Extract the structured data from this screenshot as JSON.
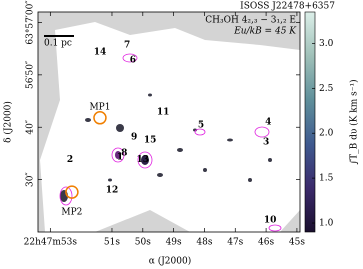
{
  "chart_data": {
    "type": "map",
    "title": "ISOSS J22478+6357",
    "line_label": "CH₃OH 4₂,₃ − 3₁,₂ E",
    "energy_label": "Eu/kB = 45 K",
    "scale_bar": "0.1 pc",
    "x_label": "α (J2000)",
    "y_label": "δ (J2000)",
    "colorbar_label": "∫T_B dυ (K km s⁻¹)",
    "xlim": [
      53.4,
      44.9
    ],
    "xticks": [
      {
        "value": 53,
        "label": "22h47m53s"
      },
      {
        "value": 51,
        "label": "51s"
      },
      {
        "value": 50,
        "label": "50s"
      },
      {
        "value": 49,
        "label": "49s"
      },
      {
        "value": 48,
        "label": "48s"
      },
      {
        "value": 47,
        "label": "47s"
      },
      {
        "value": 46,
        "label": "46s"
      },
      {
        "value": 45,
        "label": "45s"
      }
    ],
    "ylim": [
      20,
      62
    ],
    "yticks": [
      {
        "value": 60,
        "label": "63°57′00″"
      },
      {
        "value": 50,
        "label": "56′50″"
      },
      {
        "value": 40,
        "label": "40″"
      },
      {
        "value": 30,
        "label": "30″"
      }
    ],
    "clim": [
      0.9,
      3.35
    ],
    "cticks": [
      {
        "value": 1,
        "label": "1.0"
      },
      1.5,
      {
        "value": 2,
        "label": "2.0"
      },
      2.5,
      {
        "value": 3,
        "label": "3.0"
      }
    ],
    "colormap": [
      "#1a0f2e",
      "#3b2a6b",
      "#3f5a8f",
      "#5f8f9a",
      "#9fc0b8",
      "#dcefe9"
    ],
    "cores": {
      "color": "#e020e0",
      "labels": [
        "14",
        "7",
        "6",
        "11",
        "4",
        "3",
        "5",
        "9",
        "15",
        "1",
        "8",
        "13",
        "12",
        "2",
        "10"
      ],
      "x": [
        51.39,
        50.51,
        50.32,
        49.34,
        45.93,
        46.0,
        48.11,
        50.28,
        49.76,
        50.74,
        50.6,
        50.0,
        51.0,
        52.36,
        45.87
      ],
      "y": [
        54.4,
        55.7,
        52.8,
        42.9,
        41.0,
        37.2,
        40.4,
        38.1,
        37.6,
        34.3,
        35.1,
        33.8,
        28.0,
        33.8,
        22.3
      ]
    },
    "sources": {
      "color": "#f07f00",
      "labels": [
        "MP1",
        "MP2"
      ],
      "x": [
        51.39,
        52.3
      ],
      "y": [
        43.9,
        23.8
      ]
    }
  }
}
